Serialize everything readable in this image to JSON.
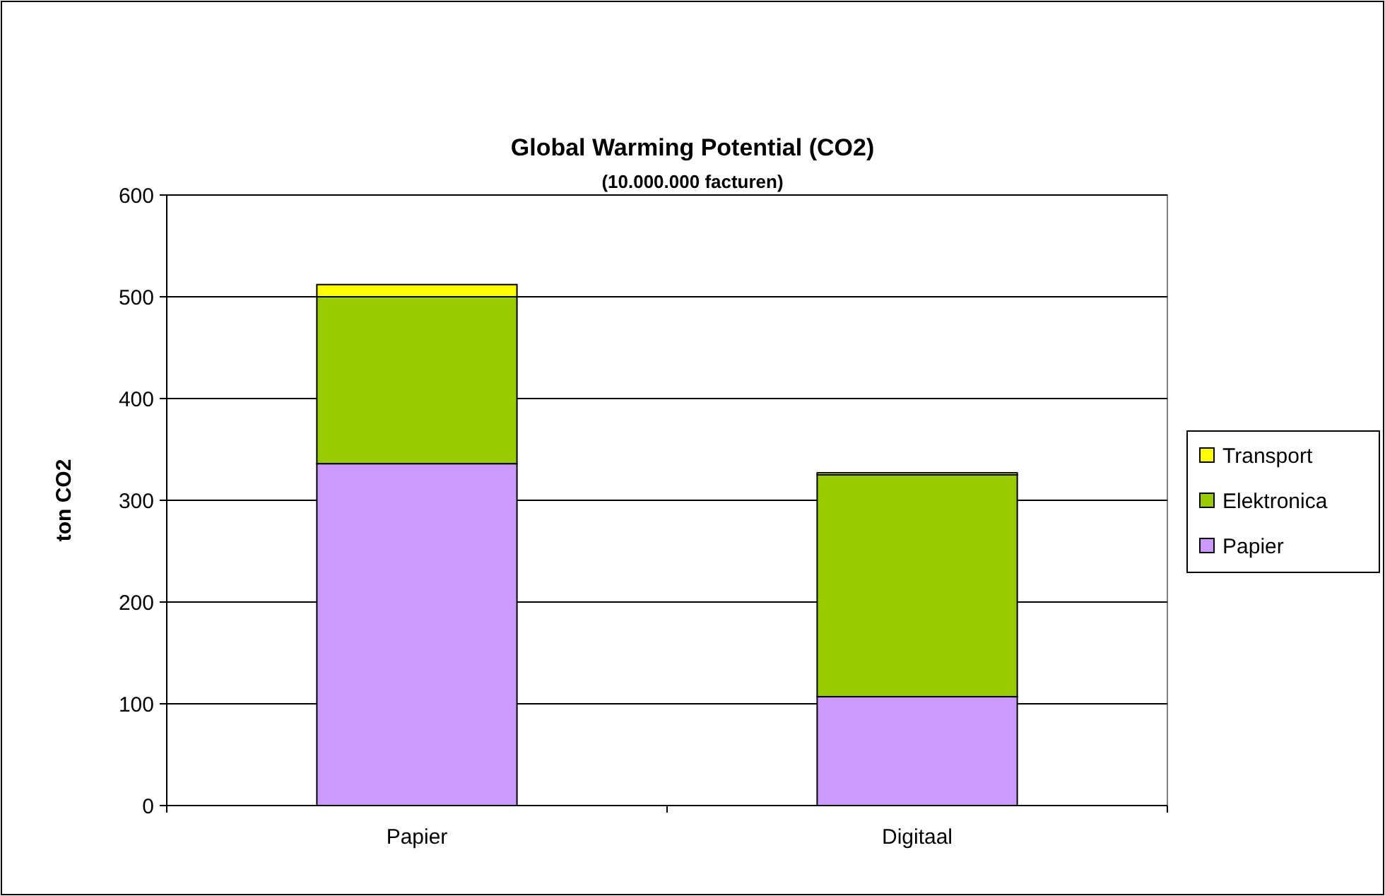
{
  "chart_data": {
    "type": "bar",
    "title": "Global Warming Potential (CO2)",
    "subtitle": "(10.000.000 facturen)",
    "ylabel": "ton CO2",
    "categories": [
      "Papier",
      "Digitaal"
    ],
    "stacked": true,
    "series": [
      {
        "name": "Papier",
        "color": "#cc99ff",
        "values": [
          336,
          107
        ]
      },
      {
        "name": "Elektronica",
        "color": "#99cc00",
        "values": [
          164,
          218
        ]
      },
      {
        "name": "Transport",
        "color": "#ffff00",
        "values": [
          12,
          2
        ]
      }
    ],
    "ylim": [
      0,
      600
    ],
    "yticks": [
      0,
      100,
      200,
      300,
      400,
      500,
      600
    ],
    "grid": "y",
    "legend": "right"
  }
}
